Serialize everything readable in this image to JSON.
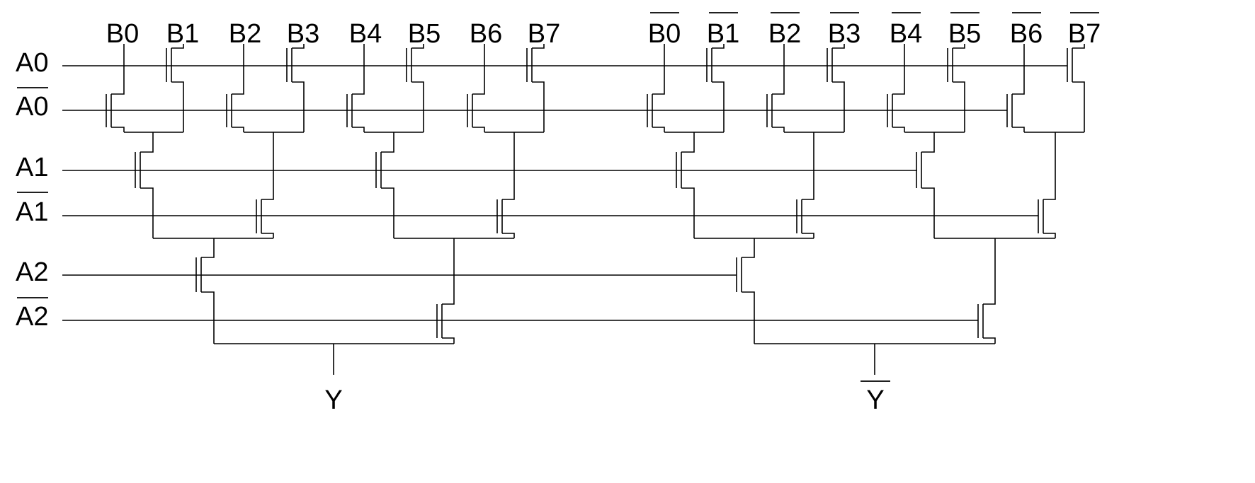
{
  "diagram": {
    "top_labels": [
      {
        "text": "B0",
        "overline": false
      },
      {
        "text": "B1",
        "overline": false
      },
      {
        "text": "B2",
        "overline": false
      },
      {
        "text": "B3",
        "overline": false
      },
      {
        "text": "B4",
        "overline": false
      },
      {
        "text": "B5",
        "overline": false
      },
      {
        "text": "B6",
        "overline": false
      },
      {
        "text": "B7",
        "overline": false
      },
      {
        "text": "B0",
        "overline": true
      },
      {
        "text": "B1",
        "overline": true
      },
      {
        "text": "B2",
        "overline": true
      },
      {
        "text": "B3",
        "overline": true
      },
      {
        "text": "B4",
        "overline": true
      },
      {
        "text": "B5",
        "overline": true
      },
      {
        "text": "B6",
        "overline": true
      },
      {
        "text": "B7",
        "overline": true
      }
    ],
    "row_labels": [
      {
        "text": "A0",
        "overline": false
      },
      {
        "text": "A0",
        "overline": true
      },
      {
        "text": "A1",
        "overline": false
      },
      {
        "text": "A1",
        "overline": true
      },
      {
        "text": "A2",
        "overline": false
      },
      {
        "text": "A2",
        "overline": true
      }
    ],
    "outputs": [
      {
        "text": "Y",
        "overline": false
      },
      {
        "text": "Y",
        "overline": true
      }
    ]
  }
}
